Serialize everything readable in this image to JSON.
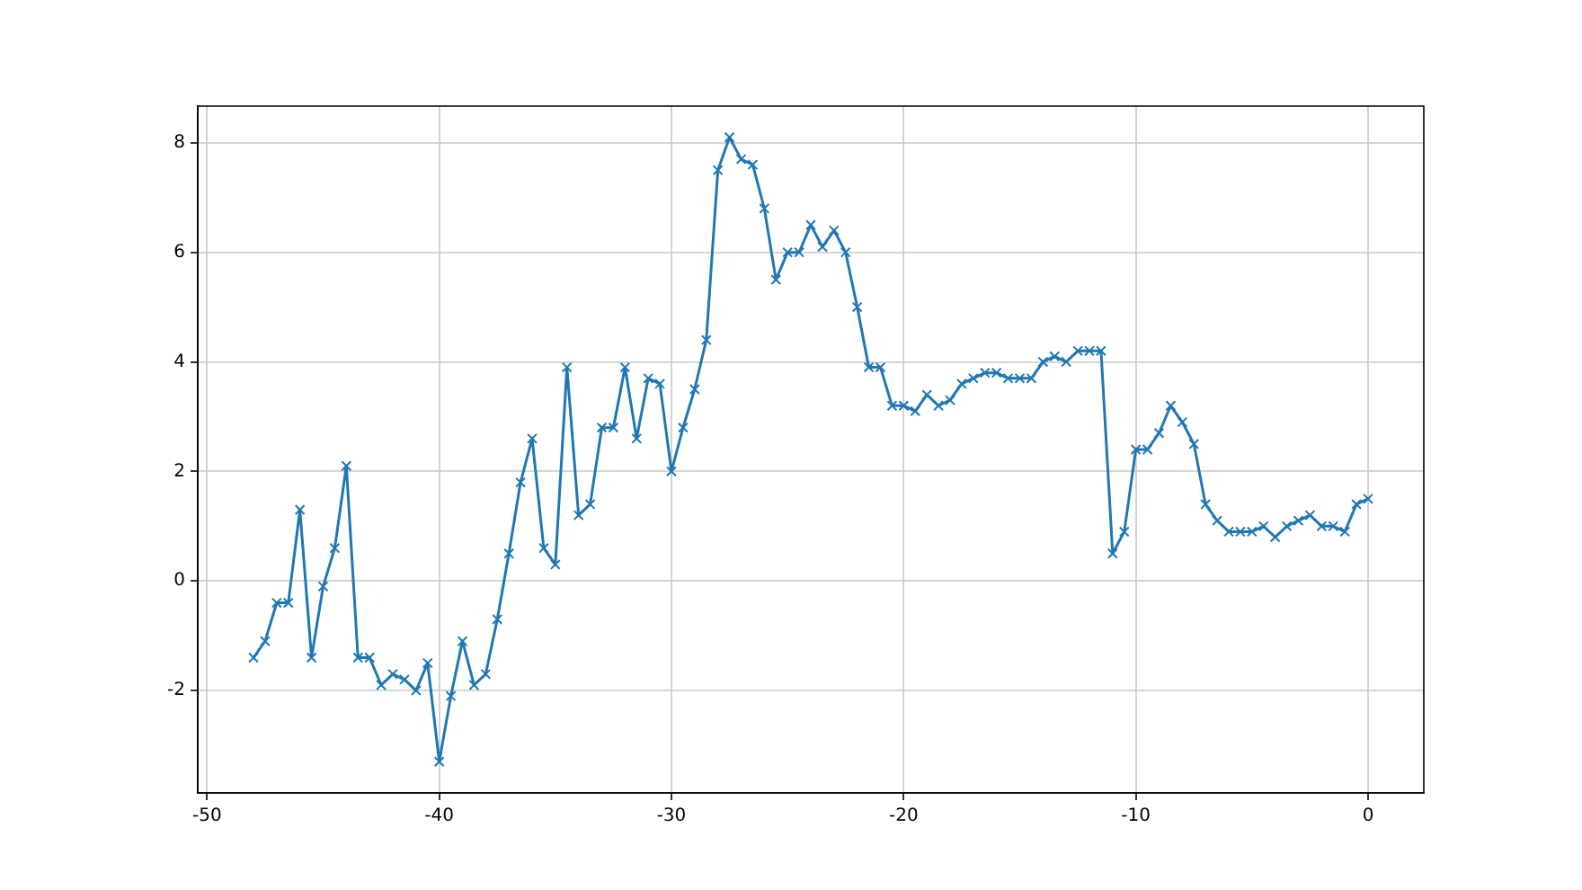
{
  "chart_data": {
    "type": "line",
    "x": [
      -48,
      -47.5,
      -47,
      -46.5,
      -46,
      -45.5,
      -45,
      -44.5,
      -44,
      -43.5,
      -43,
      -42.5,
      -42,
      -41.5,
      -41,
      -40.5,
      -40,
      -39.5,
      -39,
      -38.5,
      -38,
      -37.5,
      -37,
      -36.5,
      -36,
      -35.5,
      -35,
      -34.5,
      -34,
      -33.5,
      -33,
      -32.5,
      -32,
      -31.5,
      -31,
      -30.5,
      -30,
      -29.5,
      -29,
      -28.5,
      -28,
      -27.5,
      -27,
      -26.5,
      -26,
      -25.5,
      -25,
      -24.5,
      -24,
      -23.5,
      -23,
      -22.5,
      -22,
      -21.5,
      -21,
      -20.5,
      -20,
      -19.5,
      -19,
      -18.5,
      -18,
      -17.5,
      -17,
      -16.5,
      -16,
      -15.5,
      -15,
      -14.5,
      -14,
      -13.5,
      -13,
      -12.5,
      -12,
      -11.5,
      -11,
      -10.5,
      -10,
      -9.5,
      -9,
      -8.5,
      -8,
      -7.5,
      -7,
      -6.5,
      -6,
      -5.5,
      -5,
      -4.5,
      -4,
      -3.5,
      -3,
      -2.5,
      -2,
      -1.5,
      -1,
      -0.5,
      0
    ],
    "series": [
      {
        "color": "#1f77b4",
        "values": [
          -1.4,
          -1.1,
          -0.4,
          -0.4,
          1.3,
          -1.4,
          -0.1,
          0.6,
          2.1,
          -1.4,
          -1.4,
          -1.9,
          -1.7,
          -1.8,
          -2.0,
          -1.5,
          -3.3,
          -2.1,
          -1.1,
          -1.9,
          -1.7,
          -0.7,
          0.5,
          1.8,
          2.6,
          0.6,
          0.3,
          3.9,
          1.2,
          1.4,
          2.8,
          2.8,
          3.9,
          2.6,
          3.7,
          3.6,
          2.0,
          2.8,
          3.5,
          4.4,
          7.5,
          8.1,
          7.7,
          7.6,
          6.8,
          5.5,
          6.0,
          6.0,
          6.5,
          6.1,
          6.4,
          6.0,
          5.0,
          3.9,
          3.9,
          3.2,
          3.2,
          3.1,
          3.4,
          3.2,
          3.3,
          3.6,
          3.7,
          3.8,
          3.8,
          3.7,
          3.7,
          3.7,
          4.0,
          4.1,
          4.0,
          4.2,
          4.2,
          4.2,
          0.5,
          0.9,
          2.4,
          2.4,
          2.7,
          3.2,
          2.9,
          2.5,
          1.4,
          1.1,
          0.9,
          0.9,
          0.9,
          1.0,
          0.8,
          1.0,
          1.1,
          1.2,
          1.0,
          1.0,
          0.9,
          1.4,
          1.5
        ]
      }
    ],
    "xlim": [
      -50.4,
      2.4
    ],
    "ylim": [
      -3.87,
      8.67
    ],
    "xticks": [
      -50,
      -40,
      -30,
      -20,
      -10,
      0
    ],
    "yticks": [
      -2,
      0,
      2,
      4,
      6,
      8
    ],
    "grid": true,
    "marker": "cross",
    "line_style": "solid"
  }
}
